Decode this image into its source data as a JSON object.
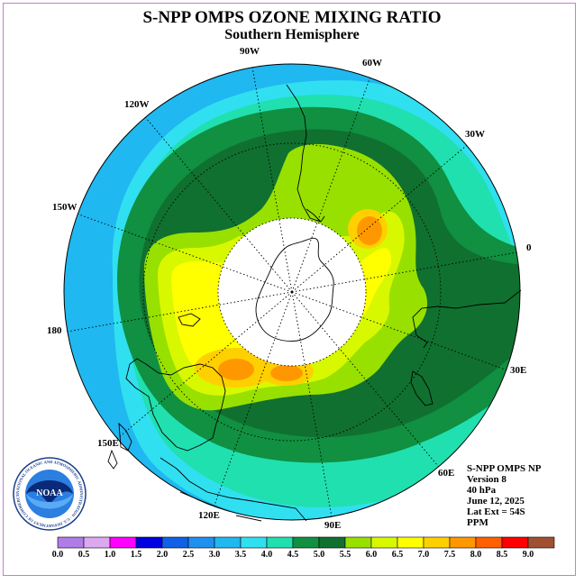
{
  "title": "S-NPP OMPS OZONE MIXING RATIO",
  "subtitle": "Southern Hemisphere",
  "longitude_labels": {
    "lon_0": "0",
    "lon_30e": "30E",
    "lon_60e": "60E",
    "lon_90e": "90E",
    "lon_120e": "120E",
    "lon_150e": "150E",
    "lon_180": "180",
    "lon_150w": "150W",
    "lon_120w": "120W",
    "lon_90w": "90W",
    "lon_60w": "60W",
    "lon_30w": "30W"
  },
  "info": {
    "instrument": "S-NPP OMPS NP",
    "version": "Version 8",
    "pressure": "40 hPa",
    "date": "June 12, 2025",
    "lat_ext": "Lat Ext = 54S",
    "units": "PPM"
  },
  "logo": {
    "text": "NOAA",
    "ring_text": "NATIONAL OCEANIC AND ATMOSPHERIC ADMINISTRATION · U.S. DEPARTMENT OF COMMERCE"
  },
  "colorbar": {
    "ticks": [
      "0.0",
      "0.5",
      "1.0",
      "1.5",
      "2.0",
      "2.5",
      "3.0",
      "3.5",
      "4.0",
      "4.5",
      "5.0",
      "5.5",
      "6.0",
      "6.5",
      "7.0",
      "7.5",
      "8.0",
      "8.5",
      "9.0"
    ],
    "colors": [
      "#b07ce8",
      "#dca8f0",
      "#ff00ff",
      "#0000e0",
      "#1060e8",
      "#2090f0",
      "#20b8f0",
      "#30e0f0",
      "#20e0b0",
      "#109040",
      "#107030",
      "#98e000",
      "#d8f800",
      "#ffff00",
      "#ffd000",
      "#ff9800",
      "#ff6000",
      "#ff0000",
      "#a05030"
    ]
  },
  "colors": {
    "frame": "#c77bd6",
    "land_outline": "#000000"
  }
}
